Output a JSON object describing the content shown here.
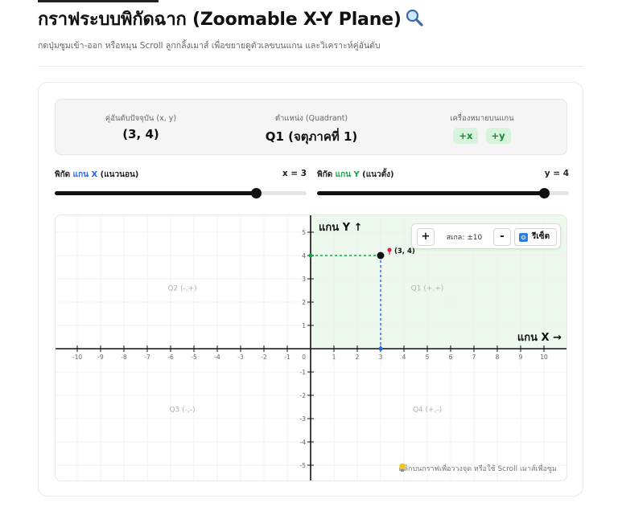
{
  "header": {
    "title": "กราฟระบบพิกัดฉาก (Zoomable X-Y Plane)",
    "subtitle": "กดปุ่มซูมเข้า-ออก หรือหมุน Scroll ลูกกลิ้งเมาส์ เพื่อขยายดูตัวเลขบนแกน และวิเคราะห์คู่อันดับ"
  },
  "info": {
    "coord_label": "คู่อันดับปัจจุบัน (x, y)",
    "coord_value": "(3, 4)",
    "quadrant_label": "ตำแหน่ง (Quadrant)",
    "quadrant_value": "Q1 (จตุภาคที่ 1)",
    "signs_label": "เครื่องหมายบนแกน",
    "signs": [
      "+x",
      "+y"
    ]
  },
  "sliders": {
    "x": {
      "label_prefix": "พิกัด ",
      "axis": "แกน X",
      "label_suffix": " (แนวนอน)",
      "value_text": "x = 3",
      "value": 3,
      "min": -5,
      "max": 5
    },
    "y": {
      "label_prefix": "พิกัด ",
      "axis": "แกน Y",
      "label_suffix": " (แนวตั้ง)",
      "value_text": "y = 4",
      "value": 4,
      "min": -5,
      "max": 5
    }
  },
  "plot": {
    "axis_x_label": "แกน X →",
    "axis_y_label": "แกน Y ↑",
    "origin_label": "0",
    "x_ticks": [
      -10,
      -9,
      -8,
      -7,
      -6,
      -5,
      -4,
      -3,
      -2,
      -1,
      1,
      2,
      3,
      4,
      5,
      6,
      7,
      8,
      9,
      10
    ],
    "y_ticks": [
      5,
      4,
      3,
      2,
      1,
      -1,
      -2,
      -3,
      -4,
      -5
    ],
    "quadrants": {
      "q1": "Q1 (+,+)",
      "q2": "Q2 (-,+)",
      "q3": "Q3 (-,-)",
      "q4": "Q4 (+,-)"
    },
    "point": {
      "x": 3,
      "y": 4,
      "label": "(3, 4)"
    },
    "colors": {
      "q1_fill": "#eef9ee",
      "x_guide": "#2563eb",
      "y_guide": "#16a34a",
      "point": "#111111",
      "pin": "#e11d48"
    }
  },
  "zoom": {
    "zoom_in": "+",
    "scale_label": "สเกล: ±10",
    "zoom_out": "-",
    "reset_label": "รีเซ็ต",
    "reset_icon": "reset-icon"
  },
  "hint": "คลิกบนกราฟเพื่อวางจุด หรือใช้ Scroll เมาส์เพื่อซูม",
  "hint_icon": "lightbulb-icon"
}
